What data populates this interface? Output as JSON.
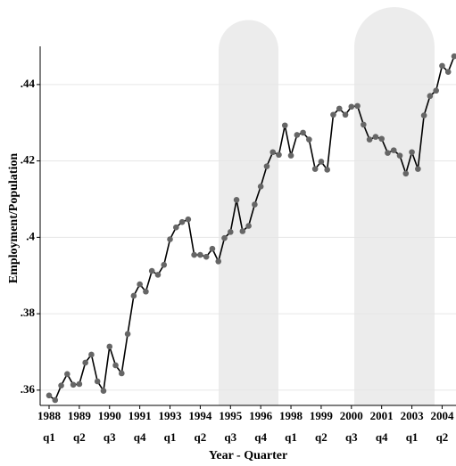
{
  "chart_data": {
    "type": "line",
    "x_label": "Year - Quarter",
    "y_label": "Employment/Population",
    "categories": [
      [
        "1988",
        "q1"
      ],
      null,
      null,
      null,
      null,
      [
        "1989",
        "q2"
      ],
      null,
      null,
      null,
      null,
      [
        "1990",
        "q3"
      ],
      null,
      null,
      null,
      null,
      [
        "1991",
        "q4"
      ],
      null,
      null,
      null,
      null,
      [
        "1993",
        "q1"
      ],
      null,
      null,
      null,
      null,
      [
        "1994",
        "q2"
      ],
      null,
      null,
      null,
      null,
      [
        "1995",
        "q3"
      ],
      null,
      null,
      null,
      null,
      [
        "1996",
        "q4"
      ],
      null,
      null,
      null,
      null,
      [
        "1998",
        "q1"
      ],
      null,
      null,
      null,
      null,
      [
        "1999",
        "q2"
      ],
      null,
      null,
      null,
      null,
      [
        "2000",
        "q3"
      ],
      null,
      null,
      null,
      null,
      [
        "2001",
        "q4"
      ],
      null,
      null,
      null,
      null,
      [
        "2003",
        "q1"
      ],
      null,
      null,
      null,
      null,
      [
        "2004",
        "q2"
      ],
      null,
      null
    ],
    "values": [
      0.3586,
      0.3574,
      0.3612,
      0.3642,
      0.3614,
      0.3616,
      0.3672,
      0.3693,
      0.3623,
      0.3598,
      0.3714,
      0.3665,
      0.3644,
      0.3747,
      0.3847,
      0.3877,
      0.3858,
      0.3912,
      0.3902,
      0.3928,
      0.3995,
      0.4026,
      0.404,
      0.4047,
      0.3954,
      0.3954,
      0.3949,
      0.397,
      0.3937,
      0.3998,
      0.4014,
      0.4098,
      0.4016,
      0.403,
      0.4086,
      0.4133,
      0.4186,
      0.4223,
      0.4216,
      0.4293,
      0.4214,
      0.4268,
      0.4274,
      0.4256,
      0.4179,
      0.4198,
      0.4177,
      0.4321,
      0.4337,
      0.4321,
      0.4342,
      0.4344,
      0.4295,
      0.4256,
      0.4263,
      0.4258,
      0.4221,
      0.4228,
      0.4214,
      0.4167,
      0.4223,
      0.4179,
      0.4319,
      0.437,
      0.4384,
      0.4449,
      0.4433,
      0.4474
    ],
    "color": "#000000",
    "marker_color": "#666666",
    "ylim": [
      0.356,
      0.45
    ],
    "yticks": [
      {
        "value": 0.36,
        "label": ".36"
      },
      {
        "value": 0.38,
        "label": ".38"
      },
      {
        "value": 0.4,
        "label": ".4"
      },
      {
        "value": 0.42,
        "label": ".42"
      },
      {
        "value": 0.44,
        "label": ".44"
      }
    ],
    "grid": true
  }
}
